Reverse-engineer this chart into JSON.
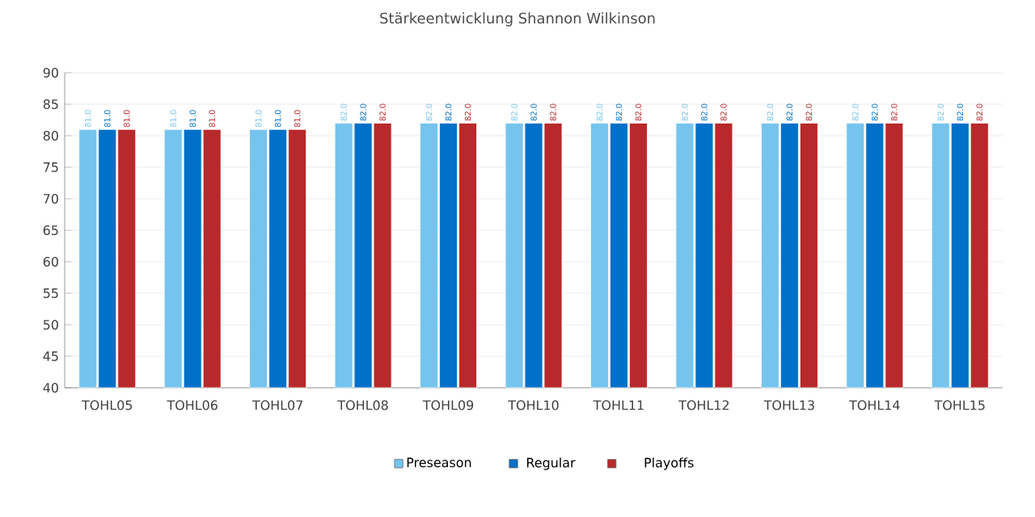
{
  "chart_data": {
    "type": "bar",
    "title": "Stärkeentwicklung Shannon Wilkinson",
    "categories": [
      "TOHL05",
      "TOHL06",
      "TOHL07",
      "TOHL08",
      "TOHL09",
      "TOHL10",
      "TOHL11",
      "TOHL12",
      "TOHL13",
      "TOHL14",
      "TOHL15"
    ],
    "series": [
      {
        "name": "Preseason",
        "color": "#75c4ee",
        "values": [
          81,
          81,
          81,
          82,
          82,
          82,
          82,
          82,
          82,
          82,
          82
        ],
        "value_labels": [
          "81.0",
          "81.0",
          "81.0",
          "82.0",
          "82.0",
          "82.0",
          "82.0",
          "82.0",
          "82.0",
          "82.0",
          "82.0"
        ]
      },
      {
        "name": "Regular",
        "color": "#0070c8",
        "values": [
          81,
          81,
          81,
          82,
          82,
          82,
          82,
          82,
          82,
          82,
          82
        ],
        "value_labels": [
          "81.0",
          "81.0",
          "81.0",
          "82.0",
          "82.0",
          "82.0",
          "82.0",
          "82.0",
          "82.0",
          "82.0",
          "82.0"
        ]
      },
      {
        "name": "Playoffs",
        "color": "#b8292b",
        "values": [
          81,
          81,
          81,
          82,
          82,
          82,
          82,
          82,
          82,
          82,
          82
        ],
        "value_labels": [
          "81.0",
          "81.0",
          "81.0",
          "82.0",
          "82.0",
          "82.0",
          "82.0",
          "82.0",
          "82.0",
          "82.0",
          "82.0"
        ]
      }
    ],
    "ylim": [
      40,
      90
    ],
    "yticks": [
      40,
      45,
      50,
      55,
      60,
      65,
      70,
      75,
      80,
      85,
      90
    ],
    "grid": "y",
    "legend": "bottom",
    "marker": "square"
  }
}
